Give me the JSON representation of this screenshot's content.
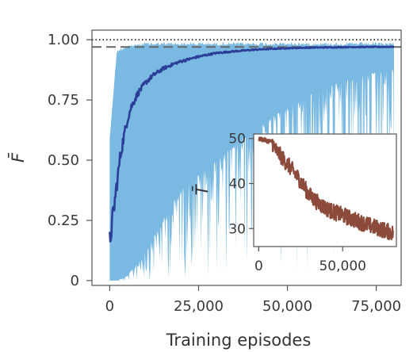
{
  "chart_data": [
    {
      "type": "line",
      "title": "",
      "xlabel": "Training episodes",
      "ylabel": "F̄",
      "xlim": [
        -5000,
        82000
      ],
      "ylim": [
        -0.02,
        1.04
      ],
      "xticks": [
        0,
        25000,
        50000,
        75000
      ],
      "xtick_labels": [
        "0",
        "25,000",
        "50,000",
        "75,000"
      ],
      "yticks": [
        0,
        0.25,
        0.5,
        0.75,
        1.0
      ],
      "ytick_labels": [
        "0",
        "0.25",
        "0.50",
        "0.75",
        "1.00"
      ],
      "reference_lines": [
        {
          "y": 1.0,
          "style": "dotted",
          "color": "#000000"
        },
        {
          "y": 0.97,
          "style": "dashed",
          "color": "#666666"
        }
      ],
      "band": {
        "color": "#79b9e2",
        "x": [
          0,
          2000,
          5000,
          10000,
          15000,
          20000,
          30000,
          40000,
          50000,
          60000,
          70000,
          80000
        ],
        "upper": [
          0.6,
          0.96,
          0.98,
          0.99,
          0.99,
          0.99,
          0.99,
          0.99,
          0.99,
          0.99,
          0.99,
          0.99
        ],
        "lower": [
          0.0,
          0.0,
          0.02,
          0.12,
          0.25,
          0.38,
          0.5,
          0.62,
          0.72,
          0.8,
          0.85,
          0.88
        ]
      },
      "series": [
        {
          "color": "#2b3f98",
          "x": [
            0,
            1000,
            2000,
            3000,
            4000,
            5000,
            6000,
            8000,
            10000,
            12000,
            15000,
            18000,
            20000,
            25000,
            30000,
            35000,
            40000,
            45000,
            50000,
            55000,
            60000,
            65000,
            70000,
            75000,
            80000
          ],
          "values": [
            0.16,
            0.28,
            0.4,
            0.52,
            0.6,
            0.67,
            0.72,
            0.78,
            0.82,
            0.85,
            0.88,
            0.9,
            0.91,
            0.93,
            0.945,
            0.952,
            0.958,
            0.962,
            0.965,
            0.967,
            0.968,
            0.969,
            0.97,
            0.97,
            0.971
          ]
        }
      ],
      "grid": false,
      "legend": "none"
    },
    {
      "type": "line",
      "title": "",
      "xlabel": "",
      "ylabel": "T̄",
      "xlim": [
        -3000,
        82000
      ],
      "ylim": [
        26,
        51
      ],
      "xticks": [
        0,
        50000
      ],
      "xtick_labels": [
        "0",
        "50,000"
      ],
      "yticks": [
        30,
        40,
        50
      ],
      "ytick_labels": [
        "30",
        "40",
        "50"
      ],
      "series": [
        {
          "color": "#8c4a3b",
          "x": [
            0,
            4000,
            8000,
            10000,
            13000,
            16000,
            20000,
            25000,
            30000,
            35000,
            40000,
            45000,
            50000,
            55000,
            60000,
            65000,
            70000,
            75000,
            80000
          ],
          "values": [
            50,
            49.6,
            49.2,
            47.5,
            46.2,
            44.8,
            43.0,
            40.5,
            37.5,
            35.8,
            34.5,
            33.6,
            33.0,
            32.2,
            31.5,
            30.8,
            30.2,
            29.6,
            29.0
          ]
        }
      ],
      "grid": false,
      "legend": "none"
    }
  ]
}
